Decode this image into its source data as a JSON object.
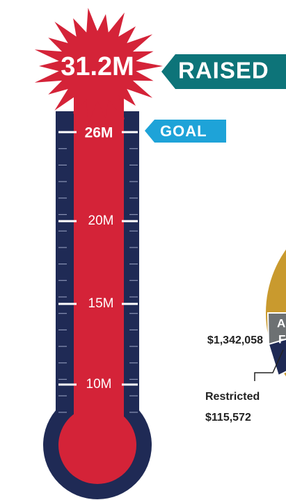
{
  "thermometer": {
    "raised_amount": "31.2M",
    "raised_label": "RAISED",
    "goal_amount": "26M",
    "goal_label": "GOAL",
    "scale_labels": [
      "20M",
      "15M",
      "10M"
    ]
  },
  "pie_fragment": {
    "segment_letters": [
      "A",
      "F"
    ],
    "amount_label": "$1,342,058",
    "restricted_label": "Restricted",
    "restricted_amount": "$115,572"
  }
}
